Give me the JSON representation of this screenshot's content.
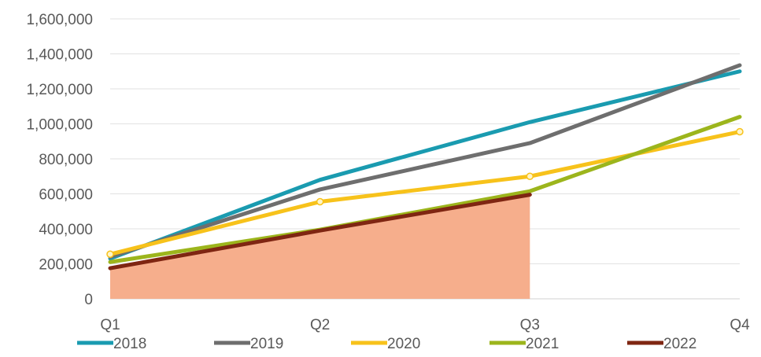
{
  "chart_data": {
    "type": "line",
    "categories": [
      "Q1",
      "Q2",
      "Q3",
      "Q4"
    ],
    "ylim": [
      0,
      1600000
    ],
    "yticks": [
      0,
      200000,
      400000,
      600000,
      800000,
      1000000,
      1200000,
      1400000,
      1600000
    ],
    "ytick_labels": [
      "0",
      "200,000",
      "400,000",
      "600,000",
      "800,000",
      "1,000,000",
      "1,200,000",
      "1,400,000",
      "1,600,000"
    ],
    "grid": true,
    "legend_position": "bottom",
    "series": [
      {
        "name": "2018",
        "color": "#1a9bb0",
        "values": [
          230000,
          680000,
          1010000,
          1300000
        ]
      },
      {
        "name": "2019",
        "color": "#6e6e6e",
        "values": [
          240000,
          625000,
          890000,
          1335000
        ]
      },
      {
        "name": "2020",
        "color": "#f7c21b",
        "values": [
          255000,
          555000,
          700000,
          955000
        ],
        "markers": true
      },
      {
        "name": "2021",
        "color": "#9cb51c",
        "values": [
          210000,
          395000,
          615000,
          1040000
        ]
      },
      {
        "name": "2022",
        "color": "#7f2612",
        "values": [
          175000,
          390000,
          595000,
          null
        ],
        "area": true,
        "area_color": "#f6ae8c"
      }
    ]
  }
}
